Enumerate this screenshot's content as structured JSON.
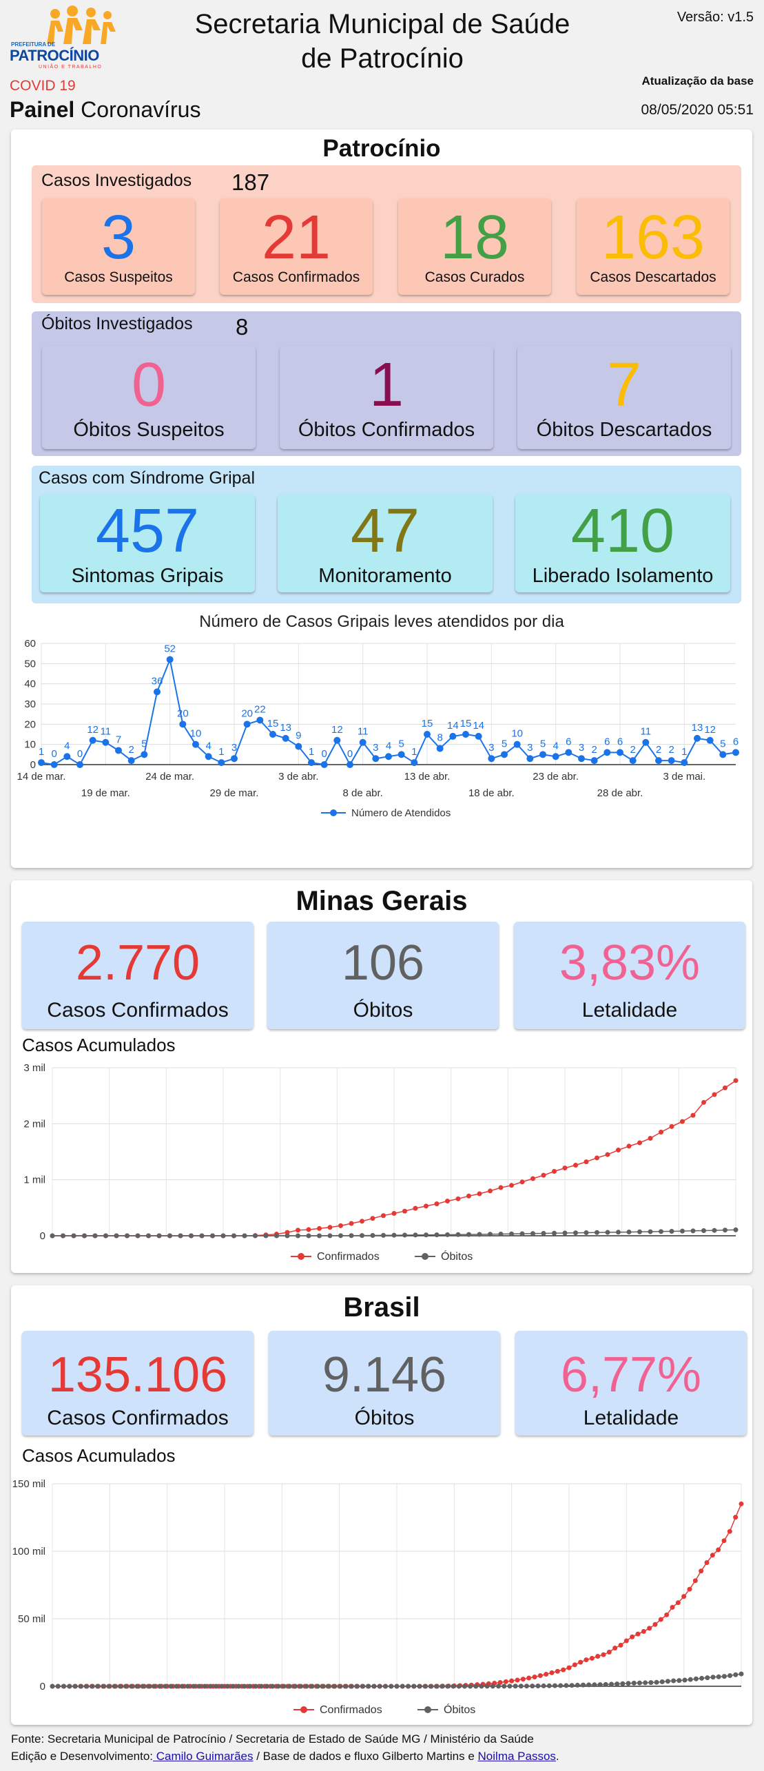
{
  "header": {
    "logo_text": "PATROCÍNIO",
    "logo_small_top": "PREFEITURA DE",
    "logo_small_bottom": "UNIÃO E TRABALHO",
    "title_line1": "Secretaria Municipal de Saúde",
    "title_line2": "de Patrocínio",
    "version": "Versão: v1.5",
    "covid_label": "COVID 19",
    "panel_bold": "Painel",
    "panel_rest": " Coronavírus",
    "update_label": "Atualização da base",
    "update_value": "08/05/2020 05:51"
  },
  "patrocinio": {
    "title": "Patrocínio",
    "casos": {
      "label": "Casos Investigados",
      "total": "187",
      "tiles": [
        {
          "value": "3",
          "label": "Casos Suspeitos",
          "color": "#1a73e8"
        },
        {
          "value": "21",
          "label": "Casos Confirmados",
          "color": "#e53935"
        },
        {
          "value": "18",
          "label": "Casos Curados",
          "color": "#43a047"
        },
        {
          "value": "163",
          "label": "Casos Descartados",
          "color": "#fbbc04"
        }
      ]
    },
    "obitos": {
      "label": "Óbitos Investigados",
      "total": "8",
      "tiles": [
        {
          "value": "0",
          "label": "Óbitos Suspeitos",
          "color": "#f06292"
        },
        {
          "value": "1",
          "label": "Óbitos Confirmados",
          "color": "#880e4f"
        },
        {
          "value": "7",
          "label": "Óbitos Descartados",
          "color": "#fbbc04"
        }
      ]
    },
    "gripal": {
      "label": "Casos com Síndrome Gripal",
      "tiles": [
        {
          "value": "457",
          "label": "Sintomas Gripais",
          "color": "#1a73e8"
        },
        {
          "value": "47",
          "label": "Monitoramento",
          "color": "#827717"
        },
        {
          "value": "410",
          "label": "Liberado Isolamento",
          "color": "#43a047"
        }
      ]
    }
  },
  "minas": {
    "title": "Minas Gerais",
    "tiles": [
      {
        "value": "2.770",
        "label": "Casos Confirmados",
        "color": "#e53935"
      },
      {
        "value": "106",
        "label": "Óbitos",
        "color": "#616161"
      },
      {
        "value": "3,83%",
        "label": "Letalidade",
        "color": "#f06292"
      }
    ],
    "chart_label": "Casos Acumulados"
  },
  "brasil": {
    "title": "Brasil",
    "tiles": [
      {
        "value": "135.106",
        "label": "Casos Confirmados",
        "color": "#e53935"
      },
      {
        "value": "9.146",
        "label": "Óbitos",
        "color": "#616161"
      },
      {
        "value": "6,77%",
        "label": "Letalidade",
        "color": "#f06292"
      }
    ],
    "chart_label": "Casos Acumulados"
  },
  "footer": {
    "line1": "Fonte: Secretaria Municipal de Patrocínio / Secretaria de Estado de Saúde MG / Ministério da Saúde",
    "line2_prefix": "Edição e Desenvolvimento:",
    "link1": " Camilo Guimarães",
    "line2_mid": " / Base de dados e fluxo Gilberto Martins e ",
    "link2": "Noilma Passos",
    "line2_end": "."
  },
  "chart_data": [
    {
      "type": "line",
      "title": "Número de Casos Gripais leves atendidos por dia",
      "x_tick_labels": [
        "14 de mar.",
        "19 de mar.",
        "24 de mar.",
        "29 de mar.",
        "3 de abr.",
        "8 de abr.",
        "13 de abr.",
        "18 de abr.",
        "23 de abr.",
        "28 de abr.",
        "3 de mai."
      ],
      "ylim": [
        0,
        60
      ],
      "y_ticks": [
        "0",
        "10",
        "20",
        "30",
        "40",
        "50",
        "60"
      ],
      "legend": "bottom",
      "color": "#1a73e8",
      "series": [
        {
          "name": "Número de Atendidos",
          "values": [
            1,
            0,
            4,
            0,
            12,
            11,
            7,
            2,
            5,
            36,
            52,
            20,
            10,
            4,
            1,
            3,
            20,
            22,
            15,
            13,
            9,
            1,
            0,
            12,
            0,
            11,
            3,
            4,
            5,
            1,
            15,
            8,
            14,
            15,
            14,
            3,
            5,
            10,
            3,
            5,
            4,
            6,
            3,
            2,
            6,
            6,
            2,
            11,
            2,
            2,
            1,
            13,
            12,
            5,
            6
          ]
        }
      ]
    },
    {
      "type": "line",
      "title": "Casos Acumulados",
      "ylim": [
        0,
        3000
      ],
      "y_ticks": [
        "0",
        "1 mil",
        "2 mil",
        "3 mil"
      ],
      "legend": "bottom",
      "series": [
        {
          "name": "Confirmados",
          "color": "#e53935",
          "values": [
            0,
            0,
            0,
            0,
            0,
            0,
            0,
            0,
            0,
            0,
            0,
            0,
            0,
            0,
            0,
            0,
            0,
            0,
            0,
            5,
            15,
            30,
            60,
            100,
            110,
            130,
            150,
            180,
            220,
            260,
            310,
            360,
            400,
            440,
            490,
            530,
            570,
            620,
            660,
            710,
            750,
            800,
            860,
            900,
            960,
            1020,
            1080,
            1150,
            1210,
            1260,
            1320,
            1390,
            1450,
            1530,
            1600,
            1660,
            1740,
            1850,
            1950,
            2040,
            2150,
            2380,
            2520,
            2640,
            2770
          ]
        },
        {
          "name": "Óbitos",
          "color": "#616161",
          "values": [
            0,
            0,
            0,
            0,
            0,
            0,
            0,
            0,
            0,
            0,
            0,
            0,
            0,
            0,
            0,
            0,
            0,
            0,
            0,
            0,
            0,
            0,
            0,
            0,
            0,
            0,
            1,
            2,
            3,
            5,
            6,
            8,
            10,
            12,
            14,
            15,
            17,
            19,
            21,
            23,
            25,
            28,
            31,
            34,
            37,
            40,
            43,
            46,
            49,
            52,
            55,
            58,
            61,
            64,
            67,
            70,
            73,
            76,
            80,
            84,
            88,
            92,
            96,
            101,
            106
          ]
        }
      ]
    },
    {
      "type": "line",
      "title": "Casos Acumulados",
      "ylim": [
        0,
        150000
      ],
      "y_ticks": [
        "0",
        "50 mil",
        "100 mil",
        "150 mil"
      ],
      "legend": "bottom",
      "series": [
        {
          "name": "Confirmados",
          "color": "#e53935",
          "values": [
            0,
            0,
            0,
            0,
            0,
            0,
            0,
            0,
            0,
            0,
            0,
            0,
            0,
            0,
            0,
            0,
            0,
            0,
            0,
            0,
            0,
            0,
            0,
            0,
            0,
            0,
            0,
            0,
            0,
            0,
            0,
            0,
            0,
            0,
            0,
            0,
            0,
            0,
            0,
            0,
            0,
            0,
            0,
            0,
            0,
            0,
            0,
            0,
            0,
            0,
            0,
            0,
            0,
            0,
            0,
            0,
            0,
            0,
            0,
            0,
            0,
            0,
            0,
            0,
            0,
            0,
            0,
            0,
            100,
            200,
            300,
            500,
            700,
            900,
            1200,
            1500,
            1900,
            2300,
            2800,
            3400,
            4000,
            4600,
            5300,
            6100,
            6900,
            7900,
            8900,
            10000,
            11100,
            12200,
            13700,
            15900,
            17800,
            19600,
            20700,
            22200,
            23400,
            25300,
            28300,
            30400,
            33700,
            36600,
            38700,
            40600,
            43000,
            45800,
            49500,
            52900,
            58500,
            61900,
            66500,
            71900,
            78200,
            85400,
            91600,
            97100,
            101100,
            107800,
            114700,
            125200,
            135106
          ]
        },
        {
          "name": "Óbitos",
          "color": "#616161",
          "values": [
            0,
            0,
            0,
            0,
            0,
            0,
            0,
            0,
            0,
            0,
            0,
            0,
            0,
            0,
            0,
            0,
            0,
            0,
            0,
            0,
            0,
            0,
            0,
            0,
            0,
            0,
            0,
            0,
            0,
            0,
            0,
            0,
            0,
            0,
            0,
            0,
            0,
            0,
            0,
            0,
            0,
            0,
            0,
            0,
            0,
            0,
            0,
            0,
            0,
            0,
            0,
            0,
            0,
            0,
            0,
            0,
            0,
            0,
            0,
            0,
            0,
            0,
            0,
            0,
            0,
            0,
            0,
            0,
            0,
            0,
            0,
            1,
            3,
            6,
            11,
            18,
            25,
            34,
            46,
            57,
            77,
            92,
            114,
            136,
            159,
            201,
            240,
            299,
            359,
            432,
            486,
            553,
            667,
            800,
            941,
            1056,
            1124,
            1223,
            1328,
            1532,
            1736,
            1924,
            2141,
            2354,
            2462,
            2587,
            2741,
            2906,
            3331,
            3704,
            4057,
            4286,
            4603,
            5017,
            5466,
            5901,
            6329,
            6750,
            7025,
            7321,
            7921,
            8536,
            9146
          ]
        }
      ]
    }
  ]
}
